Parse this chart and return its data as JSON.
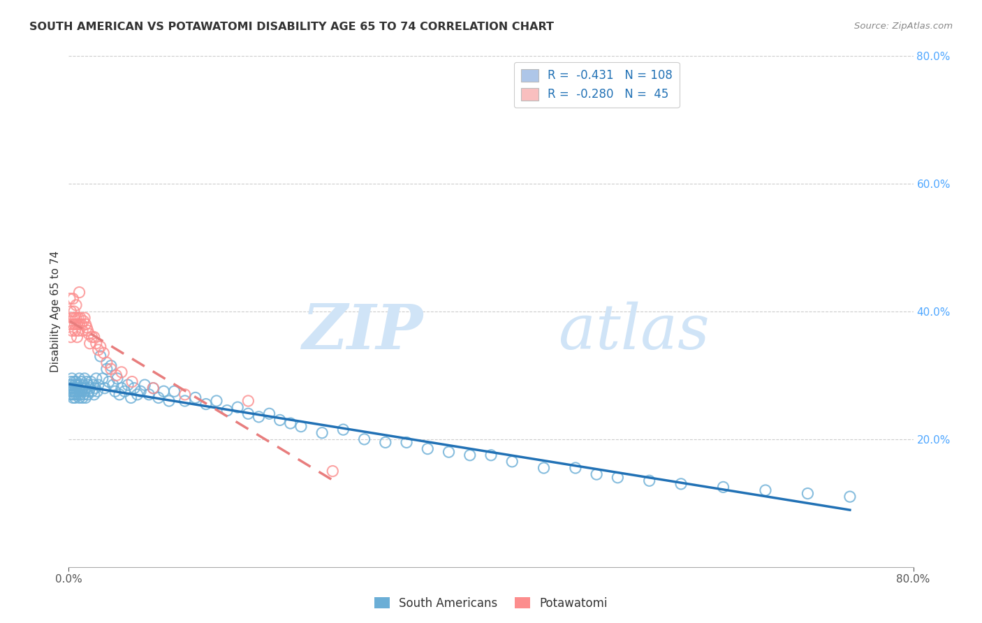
{
  "title": "SOUTH AMERICAN VS POTAWATOMI DISABILITY AGE 65 TO 74 CORRELATION CHART",
  "source": "Source: ZipAtlas.com",
  "ylabel": "Disability Age 65 to 74",
  "xlim": [
    0.0,
    0.8
  ],
  "ylim": [
    0.0,
    0.8
  ],
  "blue_color": "#6baed6",
  "pink_color": "#fc8d8d",
  "blue_line_color": "#2171b5",
  "pink_line_color": "#e87d7d",
  "legend_blue_label": "R =  -0.431   N = 108",
  "legend_pink_label": "R =  -0.280   N =  45",
  "legend_blue_patch": "#aec6e8",
  "legend_pink_patch": "#f9bfbf",
  "watermark_zip": "ZIP",
  "watermark_atlas": "atlas",
  "watermark_color": "#d0e4f7",
  "bottom_legend_blue": "South Americans",
  "bottom_legend_pink": "Potawatomi",
  "sa_R": -0.431,
  "sa_N": 108,
  "pot_R": -0.28,
  "pot_N": 45,
  "south_american_x": [
    0.001,
    0.001,
    0.002,
    0.002,
    0.002,
    0.003,
    0.003,
    0.003,
    0.004,
    0.004,
    0.004,
    0.005,
    0.005,
    0.005,
    0.006,
    0.006,
    0.006,
    0.007,
    0.007,
    0.007,
    0.008,
    0.008,
    0.009,
    0.009,
    0.01,
    0.01,
    0.01,
    0.011,
    0.011,
    0.012,
    0.012,
    0.013,
    0.013,
    0.014,
    0.014,
    0.015,
    0.015,
    0.016,
    0.016,
    0.017,
    0.018,
    0.018,
    0.019,
    0.02,
    0.021,
    0.022,
    0.023,
    0.024,
    0.025,
    0.026,
    0.027,
    0.028,
    0.03,
    0.032,
    0.034,
    0.036,
    0.038,
    0.04,
    0.042,
    0.044,
    0.046,
    0.048,
    0.05,
    0.053,
    0.056,
    0.059,
    0.062,
    0.065,
    0.068,
    0.072,
    0.076,
    0.08,
    0.085,
    0.09,
    0.095,
    0.1,
    0.11,
    0.12,
    0.13,
    0.14,
    0.15,
    0.16,
    0.17,
    0.18,
    0.19,
    0.2,
    0.21,
    0.22,
    0.24,
    0.26,
    0.28,
    0.3,
    0.32,
    0.34,
    0.36,
    0.38,
    0.4,
    0.42,
    0.45,
    0.48,
    0.5,
    0.52,
    0.55,
    0.58,
    0.62,
    0.66,
    0.7,
    0.74
  ],
  "south_american_y": [
    0.285,
    0.27,
    0.29,
    0.275,
    0.28,
    0.295,
    0.27,
    0.285,
    0.28,
    0.265,
    0.275,
    0.29,
    0.27,
    0.28,
    0.285,
    0.265,
    0.275,
    0.29,
    0.27,
    0.28,
    0.275,
    0.285,
    0.27,
    0.28,
    0.295,
    0.265,
    0.275,
    0.285,
    0.27,
    0.29,
    0.275,
    0.28,
    0.265,
    0.285,
    0.27,
    0.295,
    0.275,
    0.28,
    0.265,
    0.29,
    0.285,
    0.27,
    0.275,
    0.28,
    0.29,
    0.275,
    0.285,
    0.27,
    0.28,
    0.295,
    0.275,
    0.285,
    0.33,
    0.295,
    0.28,
    0.31,
    0.29,
    0.315,
    0.285,
    0.275,
    0.295,
    0.27,
    0.28,
    0.275,
    0.285,
    0.265,
    0.28,
    0.27,
    0.275,
    0.285,
    0.27,
    0.28,
    0.265,
    0.275,
    0.26,
    0.275,
    0.26,
    0.265,
    0.255,
    0.26,
    0.245,
    0.25,
    0.24,
    0.235,
    0.24,
    0.23,
    0.225,
    0.22,
    0.21,
    0.215,
    0.2,
    0.195,
    0.195,
    0.185,
    0.18,
    0.175,
    0.175,
    0.165,
    0.155,
    0.155,
    0.145,
    0.14,
    0.135,
    0.13,
    0.125,
    0.12,
    0.115,
    0.11
  ],
  "potawatomi_x": [
    0.001,
    0.001,
    0.002,
    0.002,
    0.003,
    0.003,
    0.004,
    0.004,
    0.005,
    0.005,
    0.006,
    0.006,
    0.007,
    0.007,
    0.008,
    0.008,
    0.009,
    0.009,
    0.01,
    0.01,
    0.011,
    0.012,
    0.013,
    0.014,
    0.015,
    0.016,
    0.017,
    0.018,
    0.019,
    0.02,
    0.022,
    0.024,
    0.026,
    0.028,
    0.03,
    0.033,
    0.036,
    0.04,
    0.045,
    0.05,
    0.06,
    0.08,
    0.11,
    0.17,
    0.25
  ],
  "potawatomi_y": [
    0.42,
    0.38,
    0.4,
    0.36,
    0.39,
    0.37,
    0.42,
    0.38,
    0.4,
    0.39,
    0.37,
    0.38,
    0.41,
    0.39,
    0.38,
    0.36,
    0.39,
    0.37,
    0.43,
    0.38,
    0.39,
    0.38,
    0.37,
    0.385,
    0.39,
    0.38,
    0.375,
    0.37,
    0.365,
    0.35,
    0.36,
    0.36,
    0.35,
    0.34,
    0.345,
    0.335,
    0.32,
    0.31,
    0.3,
    0.305,
    0.29,
    0.28,
    0.27,
    0.26,
    0.15
  ]
}
